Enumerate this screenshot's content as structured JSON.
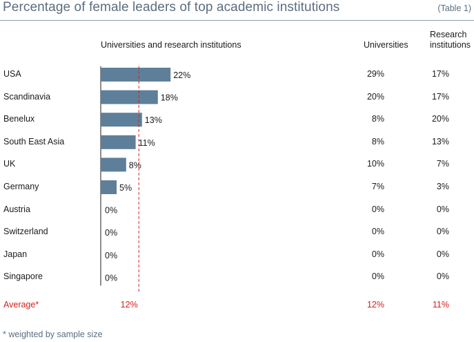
{
  "title": "Percentage of female leaders of top academic institutions",
  "table_tag": "(Table 1)",
  "headers": {
    "bar": "Universities and research institutions",
    "universities": "Universities",
    "research_line1": "Research",
    "research_line2": "institutions"
  },
  "footnote": "* weighted by sample size",
  "colors": {
    "bar": "#5d7f99",
    "average": "#d42020",
    "title": "#5b6e80"
  },
  "chart_data": {
    "type": "bar",
    "orientation": "horizontal",
    "title": "Percentage of female leaders of top academic institutions",
    "categories": [
      "USA",
      "Scandinavia",
      "Benelux",
      "South East Asia",
      "UK",
      "Germany",
      "Austria",
      "Switzerland",
      "Japan",
      "Singapore"
    ],
    "series": [
      {
        "name": "Universities and research institutions",
        "values": [
          22,
          18,
          13,
          11,
          8,
          5,
          0,
          0,
          0,
          0
        ]
      }
    ],
    "value_labels": [
      "22%",
      "18%",
      "13%",
      "11%",
      "8%",
      "5%",
      "0%",
      "0%",
      "0%",
      "0%"
    ],
    "universities": [
      "29%",
      "20%",
      "8%",
      "8%",
      "10%",
      "7%",
      "0%",
      "0%",
      "0%",
      "0%"
    ],
    "research_institutions": [
      "17%",
      "17%",
      "20%",
      "13%",
      "7%",
      "3%",
      "0%",
      "0%",
      "0%",
      "0%"
    ],
    "average": {
      "label": "Average",
      "marker": "*",
      "value": 12,
      "bar_label": "12%",
      "universities": "12%",
      "research_institutions": "11%"
    }
  }
}
